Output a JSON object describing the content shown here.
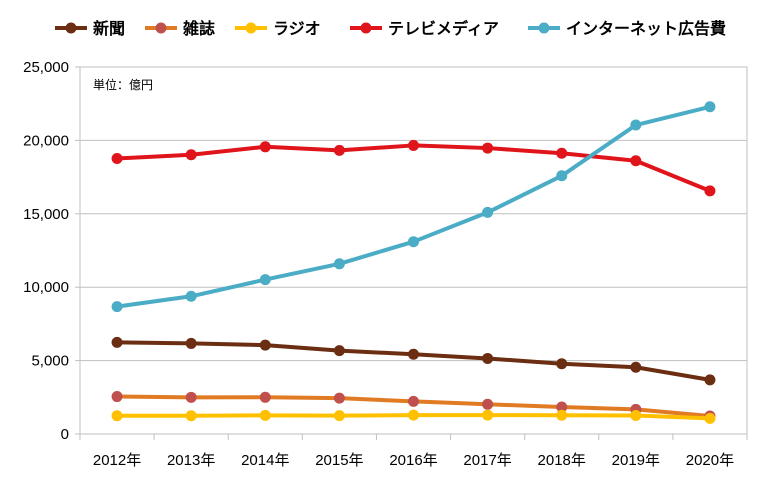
{
  "chart_data": {
    "type": "line",
    "unit_note": "単位：億円",
    "categories": [
      "2012年",
      "2013年",
      "2014年",
      "2015年",
      "2016年",
      "2017年",
      "2018年",
      "2019年",
      "2020年"
    ],
    "yticks": [
      "0",
      "5,000",
      "10,000",
      "15,000",
      "20,000",
      "25,000"
    ],
    "ylim": [
      0,
      25000
    ],
    "grid": true,
    "legend_position": "top",
    "series": [
      {
        "name": "新聞",
        "color": "#6b2e12",
        "values": [
          6242,
          6170,
          6057,
          5679,
          5431,
          5147,
          4784,
          4547,
          3688
        ]
      },
      {
        "name": "雑誌",
        "color": "#c0504d",
        "line_color": "#e07b24",
        "values": [
          2551,
          2499,
          2500,
          2443,
          2223,
          2023,
          1841,
          1675,
          1223
        ]
      },
      {
        "name": "ラジオ",
        "color": "#ffc000",
        "values": [
          1246,
          1243,
          1272,
          1254,
          1285,
          1290,
          1278,
          1260,
          1066
        ]
      },
      {
        "name": "テレビメディア",
        "color": "#e0151b",
        "values": [
          18770,
          19023,
          19564,
          19323,
          19657,
          19478,
          19123,
          18612,
          16559
        ]
      },
      {
        "name": "インターネット広告費",
        "color": "#4bacc6",
        "values": [
          8680,
          9381,
          10519,
          11594,
          13100,
          15094,
          17589,
          21048,
          22290
        ]
      }
    ]
  }
}
